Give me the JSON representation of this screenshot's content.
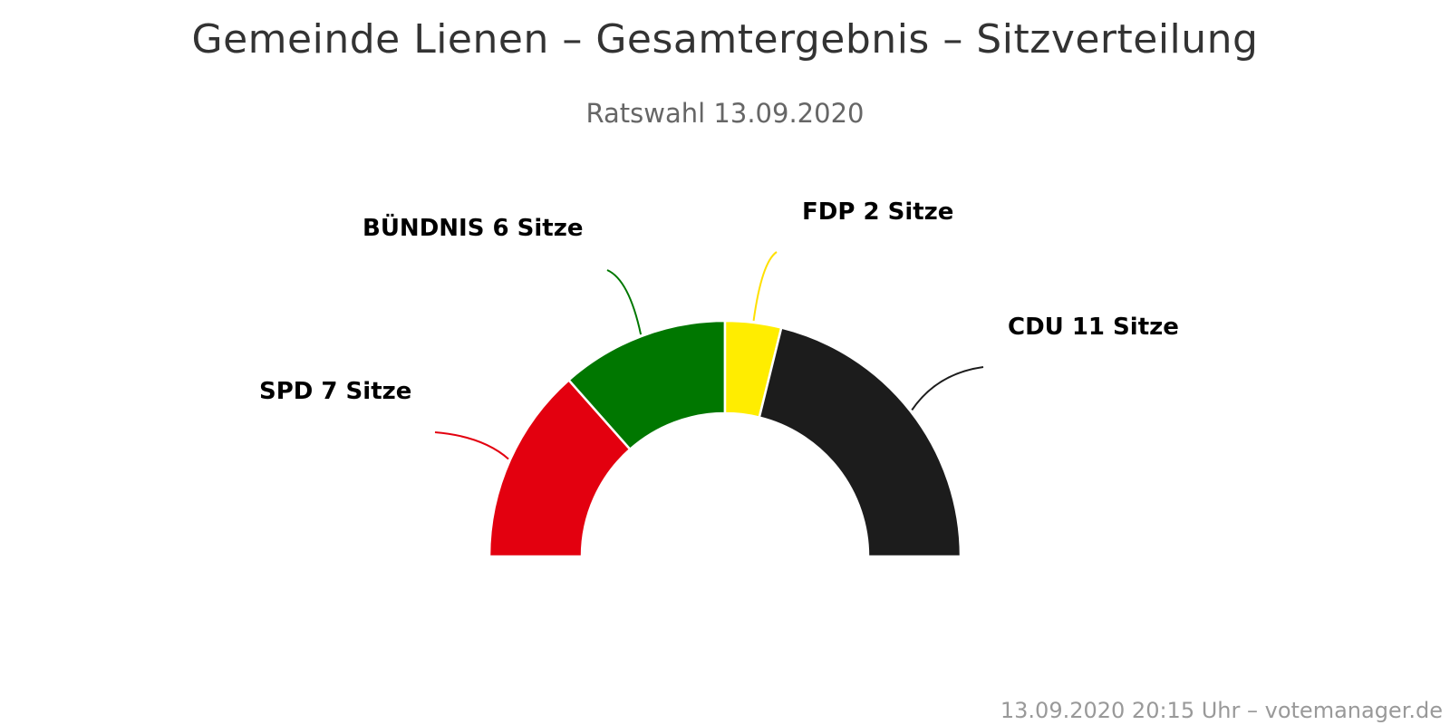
{
  "chart_data": {
    "type": "pie",
    "variant": "semicircle-donut",
    "title": "Gemeinde Lienen – Gesamtergebnis – Sitzverteilung",
    "subtitle": "Ratswahl 13.09.2020",
    "series": [
      {
        "name": "SPD",
        "value": 7,
        "label": "SPD 7 Sitze",
        "color": "#e3000f"
      },
      {
        "name": "BÜNDNIS",
        "value": 6,
        "label": "BÜNDNIS 6 Sitze",
        "color": "#007700"
      },
      {
        "name": "FDP",
        "value": 2,
        "label": "FDP 2 Sitze",
        "color": "#ffed00"
      },
      {
        "name": "CDU",
        "value": 11,
        "label": "CDU 11 Sitze",
        "color": "#1c1c1c"
      }
    ],
    "credits": "13.09.2020 20:15 Uhr – votemanager.de"
  }
}
